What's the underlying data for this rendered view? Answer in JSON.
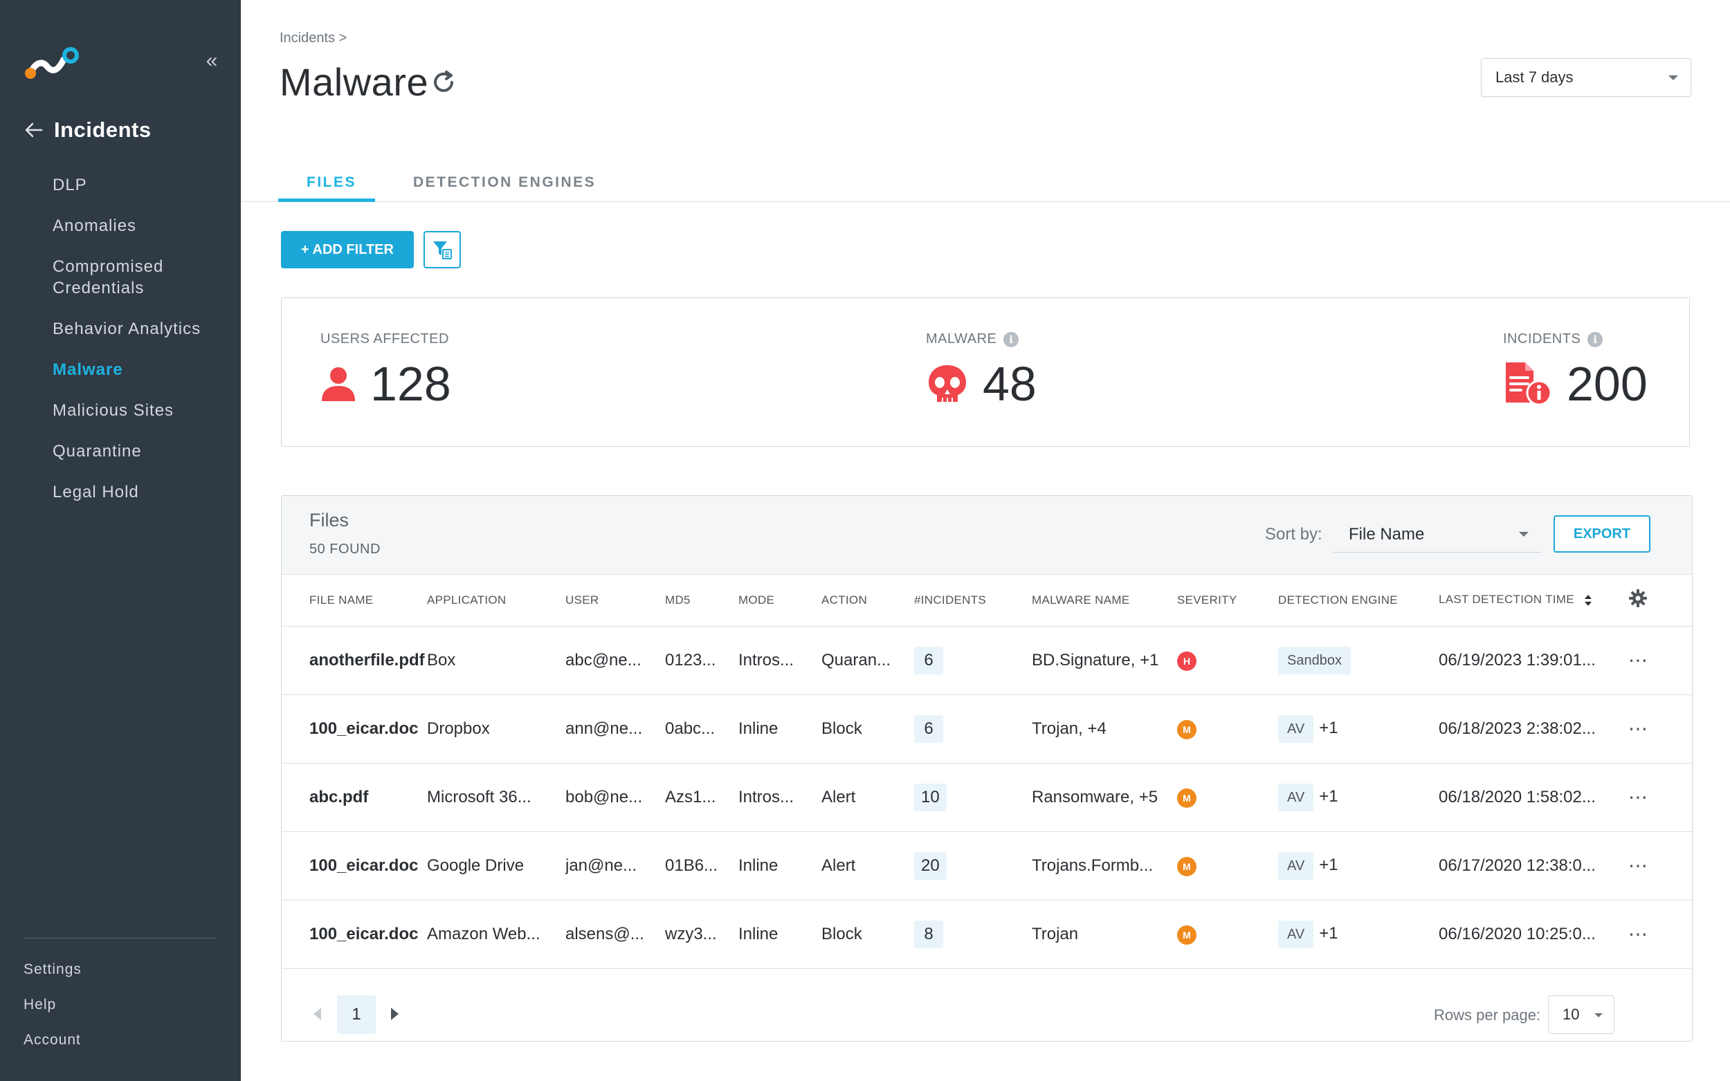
{
  "sidebar": {
    "back_title": "Incidents",
    "items": [
      {
        "label": "DLP"
      },
      {
        "label": "Anomalies"
      },
      {
        "label": "Compromised Credentials"
      },
      {
        "label": "Behavior Analytics"
      },
      {
        "label": "Malware",
        "active": true
      },
      {
        "label": "Malicious Sites"
      },
      {
        "label": "Quarantine"
      },
      {
        "label": "Legal Hold"
      }
    ],
    "bottom": [
      "Settings",
      "Help",
      "Account"
    ]
  },
  "header": {
    "breadcrumb": "Incidents >",
    "title": "Malware",
    "date_range": "Last 7 days"
  },
  "tabs": [
    "FILES",
    "DETECTION ENGINES"
  ],
  "toolbar": {
    "add_filter": "+ ADD FILTER"
  },
  "stats": {
    "users_label": "USERS AFFECTED",
    "users_value": "128",
    "malware_label": "MALWARE",
    "malware_value": "48",
    "incidents_label": "INCIDENTS",
    "incidents_value": "200"
  },
  "files": {
    "title": "Files",
    "count": "50 FOUND",
    "sort_label": "Sort by:",
    "sort_value": "File Name",
    "export": "EXPORT",
    "columns": [
      "FILE NAME",
      "APPLICATION",
      "USER",
      "MD5",
      "MODE",
      "ACTION",
      "#INCIDENTS",
      "MALWARE NAME",
      "SEVERITY",
      "DETECTION ENGINE",
      "LAST DETECTION TIME"
    ],
    "rows": [
      {
        "file": "anotherfile.pdf",
        "app": "Box",
        "user": "abc@ne...",
        "md5": "0123...",
        "mode": "Intros...",
        "action": "Quaran...",
        "incidents": "6",
        "malware": "BD.Signature, +1",
        "severity": "H",
        "engine": "Sandbox",
        "engine_extra": "",
        "time": "06/19/2023 1:39:01..."
      },
      {
        "file": "100_eicar.doc",
        "app": "Dropbox",
        "user": "ann@ne...",
        "md5": "0abc...",
        "mode": "Inline",
        "action": "Block",
        "incidents": "6",
        "malware": "Trojan, +4",
        "severity": "M",
        "engine": "AV",
        "engine_extra": "+1",
        "time": "06/18/2023 2:38:02..."
      },
      {
        "file": "abc.pdf",
        "app": "Microsoft 36...",
        "user": "bob@ne...",
        "md5": "Azs1...",
        "mode": "Intros...",
        "action": "Alert",
        "incidents": "10",
        "malware": "Ransomware, +5",
        "severity": "M",
        "engine": "AV",
        "engine_extra": "+1",
        "time": "06/18/2020 1:58:02..."
      },
      {
        "file": "100_eicar.doc",
        "app": "Google Drive",
        "user": "jan@ne...",
        "md5": "01B6...",
        "mode": "Inline",
        "action": "Alert",
        "incidents": "20",
        "malware": "Trojans.Formb...",
        "severity": "M",
        "engine": "AV",
        "engine_extra": "+1",
        "time": "06/17/2020 12:38:0..."
      },
      {
        "file": "100_eicar.doc",
        "app": "Amazon Web...",
        "user": "alsens@...",
        "md5": "wzy3...",
        "mode": "Inline",
        "action": "Block",
        "incidents": "8",
        "malware": "Trojan",
        "severity": "M",
        "engine": "AV",
        "engine_extra": "+1",
        "time": "06/16/2020 10:25:0..."
      }
    ]
  },
  "pagination": {
    "page": "1",
    "rows_label": "Rows per page:",
    "rows_value": "10"
  },
  "colors": {
    "accent": "#1BA7D7",
    "sidebar": "#2F3A45",
    "danger": "#F0454B",
    "high": "#F0454B",
    "medium": "#F08A1C"
  }
}
